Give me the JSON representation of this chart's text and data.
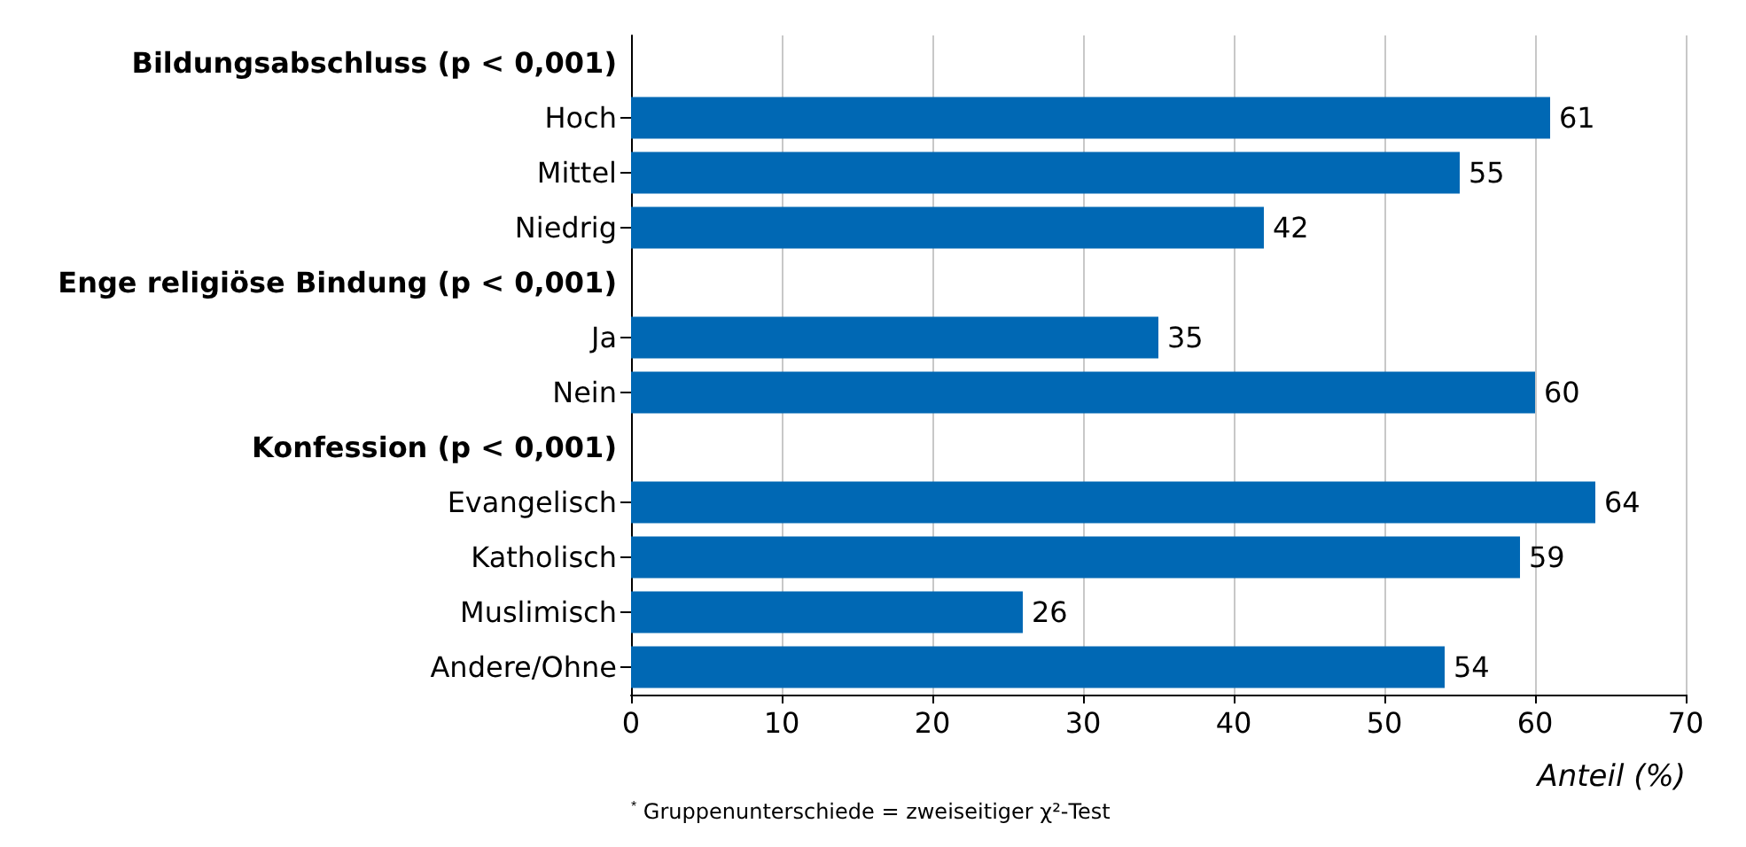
{
  "chart_data": {
    "type": "bar",
    "orientation": "horizontal",
    "categories": [
      "Bildungsabschluss (p < 0,001)",
      "Hoch",
      "Mittel",
      "Niedrig",
      "Enge religiöse Bindung (p < 0,001)",
      "Ja",
      "Nein",
      "Konfession (p < 0,001)",
      "Evangelisch",
      "Katholisch",
      "Muslimisch",
      "Andere/Ohne"
    ],
    "values": [
      null,
      61,
      55,
      42,
      null,
      35,
      60,
      null,
      64,
      59,
      26,
      54
    ],
    "color": "#0068b4",
    "xlim": [
      0,
      70
    ],
    "xticks": [
      0,
      10,
      20,
      30,
      40,
      50,
      60,
      70
    ],
    "xlabel": "Anteil (%)",
    "grid": "x",
    "data_labels": true,
    "annotations": [
      "$^{*}$ Gruppenunterschiede = zweiseitiger χ²-Test"
    ]
  }
}
